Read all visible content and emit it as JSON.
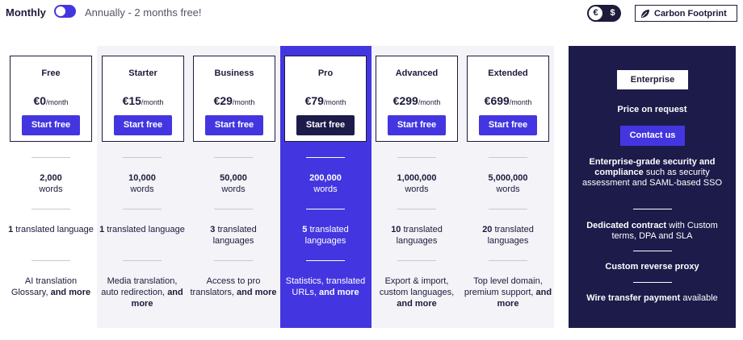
{
  "billing": {
    "monthly_label": "Monthly",
    "annual_label": "Annually - 2 months free!"
  },
  "currency": {
    "eur": "€",
    "usd": "$"
  },
  "carbon": {
    "label": "Carbon Footprint"
  },
  "plans": [
    {
      "name": "Free",
      "price": "€0",
      "per": "/month",
      "cta": "Start free",
      "words": "2,000",
      "words_unit": "words",
      "languages_count": "1",
      "languages_rest": "translated language",
      "features": "AI translation Glossary,",
      "more": "and more"
    },
    {
      "name": "Starter",
      "price": "€15",
      "per": "/month",
      "cta": "Start free",
      "words": "10,000",
      "words_unit": "words",
      "languages_count": "1",
      "languages_rest": "translated language",
      "features": "Media translation, auto redirection,",
      "more": "and more"
    },
    {
      "name": "Business",
      "price": "€29",
      "per": "/month",
      "cta": "Start free",
      "words": "50,000",
      "words_unit": "words",
      "languages_count": "3",
      "languages_rest": "translated languages",
      "features": "Access to pro translators,",
      "more": "and more"
    },
    {
      "name": "Pro",
      "price": "€79",
      "per": "/month",
      "cta": "Start free",
      "words": "200,000",
      "words_unit": "words",
      "languages_count": "5",
      "languages_rest": "translated languages",
      "features": "Statistics, translated URLs,",
      "more": "and more"
    },
    {
      "name": "Advanced",
      "price": "€299",
      "per": "/month",
      "cta": "Start free",
      "words": "1,000,000",
      "words_unit": "words",
      "languages_count": "10",
      "languages_rest": "translated languages",
      "features": "Export & import, custom languages,",
      "more": "and more"
    },
    {
      "name": "Extended",
      "price": "€699",
      "per": "/month",
      "cta": "Start free",
      "words": "5,000,000",
      "words_unit": "words",
      "languages_count": "20",
      "languages_rest": "translated languages",
      "features": "Top level domain, premium support,",
      "more": "and more"
    }
  ],
  "enterprise": {
    "name": "Enterprise",
    "price": "Price on request",
    "cta": "Contact us",
    "security_bold": "Enterprise-grade security and compliance",
    "security_rest": "such as security assessment and SAML-based SSO",
    "contract_bold": "Dedicated contract",
    "contract_rest": "with Custom terms, DPA and SLA",
    "proxy": "Custom reverse proxy",
    "wire_bold": "Wire transfer payment",
    "wire_rest": "available"
  },
  "colors": {
    "accent": "#4336e0",
    "dark": "#1c1b4a",
    "light_bg": "#f3f3f8"
  }
}
